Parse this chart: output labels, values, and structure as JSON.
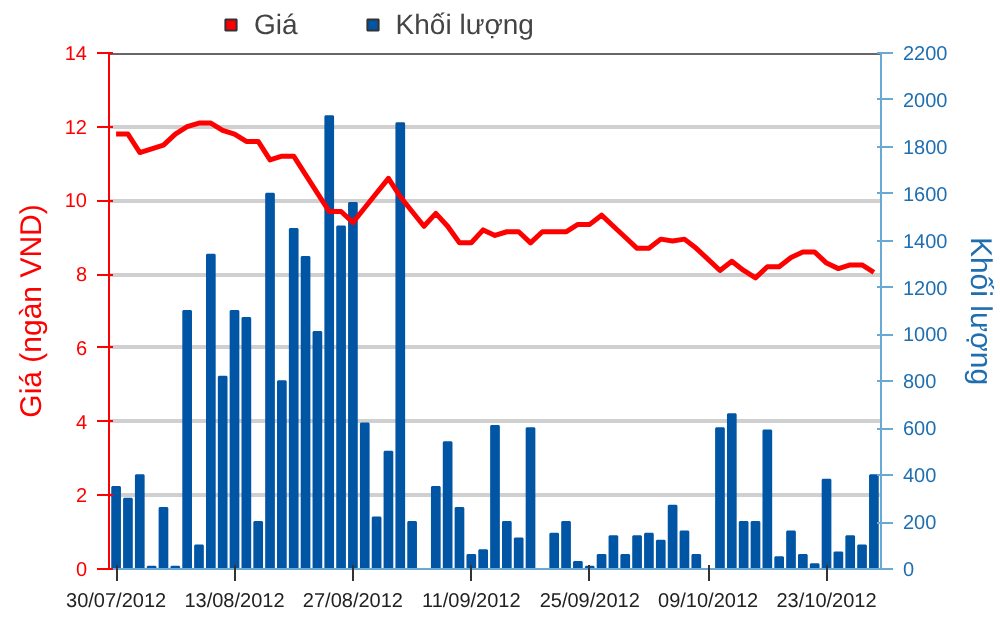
{
  "chart_data": {
    "type": "bar",
    "categories": [
      "30/07/2012",
      null,
      null,
      null,
      null,
      null,
      null,
      null,
      null,
      null,
      "13/08/2012",
      null,
      null,
      null,
      null,
      null,
      null,
      null,
      null,
      null,
      "27/08/2012",
      null,
      null,
      null,
      null,
      null,
      null,
      null,
      null,
      null,
      "11/09/2012",
      null,
      null,
      null,
      null,
      null,
      null,
      null,
      null,
      null,
      "25/09/2012",
      null,
      null,
      null,
      null,
      null,
      null,
      null,
      null,
      null,
      "09/10/2012",
      null,
      null,
      null,
      null,
      null,
      null,
      null,
      null,
      null,
      "23/10/2012",
      null,
      null,
      null,
      null
    ],
    "series": [
      {
        "name": "Giá",
        "type": "line",
        "color": "#ff0000",
        "values": [
          11.8,
          11.8,
          11.3,
          11.4,
          11.5,
          11.8,
          12.0,
          12.1,
          12.1,
          11.9,
          11.8,
          11.6,
          11.6,
          11.1,
          11.2,
          11.2,
          10.7,
          10.2,
          9.7,
          9.7,
          9.4,
          9.8,
          10.2,
          10.6,
          10.1,
          9.7,
          9.3,
          9.65,
          9.3,
          8.85,
          8.85,
          9.2,
          9.05,
          9.15,
          9.15,
          8.85,
          9.15,
          9.15,
          9.15,
          9.35,
          9.35,
          9.6,
          9.3,
          9.0,
          8.7,
          8.7,
          8.95,
          8.9,
          8.95,
          8.7,
          8.4,
          8.1,
          8.35,
          8.1,
          7.9,
          8.2,
          8.2,
          8.45,
          8.6,
          8.6,
          8.3,
          8.15,
          8.25,
          8.25,
          8.05
        ]
      },
      {
        "name": "Khối lượng",
        "axis": "y2",
        "color": "#0055a4",
        "values": [
          350,
          300,
          400,
          10,
          260,
          10,
          1100,
          100,
          1340,
          820,
          1100,
          1070,
          200,
          1600,
          800,
          1450,
          1330,
          1010,
          1930,
          1460,
          1560,
          620,
          220,
          500,
          1900,
          200,
          null,
          350,
          540,
          260,
          60,
          80,
          610,
          200,
          130,
          600,
          null,
          150,
          200,
          30,
          10,
          60,
          140,
          60,
          140,
          150,
          120,
          270,
          160,
          60,
          null,
          600,
          660,
          200,
          200,
          590,
          50,
          160,
          60,
          20,
          380,
          70,
          140,
          100,
          400
        ]
      }
    ],
    "ylabel": "Giá (ngàn VND)",
    "y2label": "Khối lượng",
    "ylim": [
      0,
      14
    ],
    "yticks": [
      0,
      2,
      4,
      6,
      8,
      10,
      12,
      14
    ],
    "y2lim": [
      0,
      2200
    ],
    "y2ticks": [
      0,
      200,
      400,
      600,
      800,
      1000,
      1200,
      1400,
      1600,
      1800,
      2000,
      2200
    ],
    "grid": "y",
    "legend": "top"
  }
}
